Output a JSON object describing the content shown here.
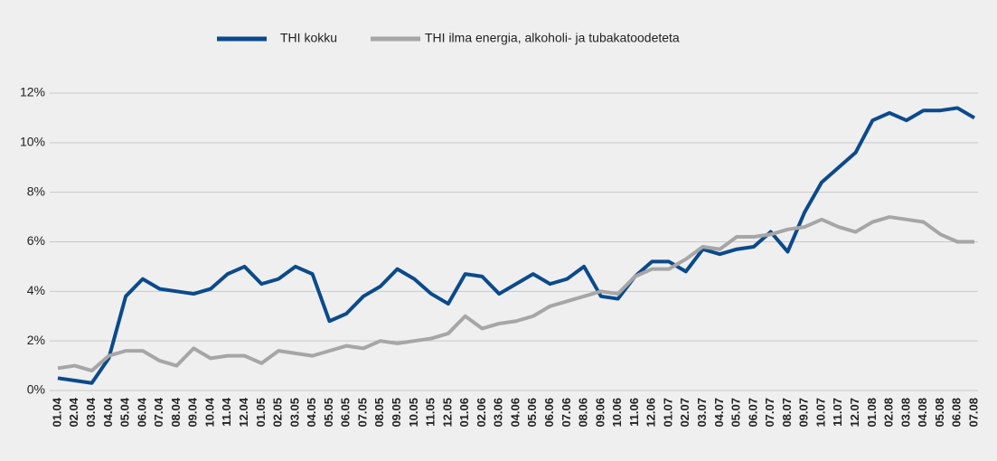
{
  "chart_data": {
    "type": "line",
    "categories": [
      "01.04",
      "02.04",
      "03.04",
      "04.04",
      "05.04",
      "06.04",
      "07.04",
      "08.04",
      "09.04",
      "10.04",
      "11.04",
      "12.04",
      "01.05",
      "02.05",
      "03.05",
      "04.05",
      "05.05",
      "06.05",
      "07.05",
      "08.05",
      "09.05",
      "10.05",
      "11.05",
      "12.05",
      "01.06",
      "02.06",
      "03.06",
      "04.06",
      "05.06",
      "06.06",
      "07.06",
      "08.06",
      "09.06",
      "10.06",
      "11.06",
      "12.06",
      "01.07",
      "02.07",
      "03.07",
      "04.07",
      "05.07",
      "06.07",
      "07.07",
      "08.07",
      "09.07",
      "10.07",
      "11.07",
      "12.07",
      "01.08",
      "02.08",
      "03.08",
      "04.08",
      "05.08",
      "06.08",
      "07.08"
    ],
    "series": [
      {
        "name": "THI kokku",
        "color": "#0b4a8b",
        "values": [
          0.5,
          0.4,
          0.3,
          1.3,
          3.8,
          4.5,
          4.1,
          4.0,
          3.9,
          4.1,
          4.7,
          5.0,
          4.3,
          4.5,
          5.0,
          4.7,
          2.8,
          3.1,
          3.8,
          4.2,
          4.9,
          4.5,
          3.9,
          3.5,
          4.7,
          4.6,
          3.9,
          4.3,
          4.7,
          4.3,
          4.5,
          5.0,
          3.8,
          3.7,
          4.6,
          5.2,
          5.2,
          4.8,
          5.7,
          5.5,
          5.7,
          5.8,
          6.4,
          5.6,
          7.2,
          8.4,
          9.0,
          9.6,
          10.9,
          11.2,
          10.9,
          11.3,
          11.3,
          11.4,
          11.0
        ]
      },
      {
        "name": "THI ilma energia, alkoholi- ja tubakatoodeteta",
        "color": "#a6a6a6",
        "values": [
          0.9,
          1.0,
          0.8,
          1.4,
          1.6,
          1.6,
          1.2,
          1.0,
          1.7,
          1.3,
          1.4,
          1.4,
          1.1,
          1.6,
          1.5,
          1.4,
          1.6,
          1.8,
          1.7,
          2.0,
          1.9,
          2.0,
          2.1,
          2.3,
          3.0,
          2.5,
          2.7,
          2.8,
          3.0,
          3.4,
          3.6,
          3.8,
          4.0,
          3.9,
          4.6,
          4.9,
          4.9,
          5.3,
          5.8,
          5.7,
          6.2,
          6.2,
          6.3,
          6.5,
          6.6,
          6.9,
          6.6,
          6.4,
          6.8,
          7.0,
          6.9,
          6.8,
          6.3,
          6.0,
          6.0
        ]
      }
    ],
    "ylim": [
      0,
      12
    ],
    "yticks": [
      {
        "value": 0,
        "label": "0%"
      },
      {
        "value": 2,
        "label": "2%"
      },
      {
        "value": 4,
        "label": "4%"
      },
      {
        "value": 6,
        "label": "6%"
      },
      {
        "value": 8,
        "label": "8%"
      },
      {
        "value": 10,
        "label": "10%"
      },
      {
        "value": 12,
        "label": "12%"
      }
    ],
    "grid": true,
    "legend": "top"
  }
}
